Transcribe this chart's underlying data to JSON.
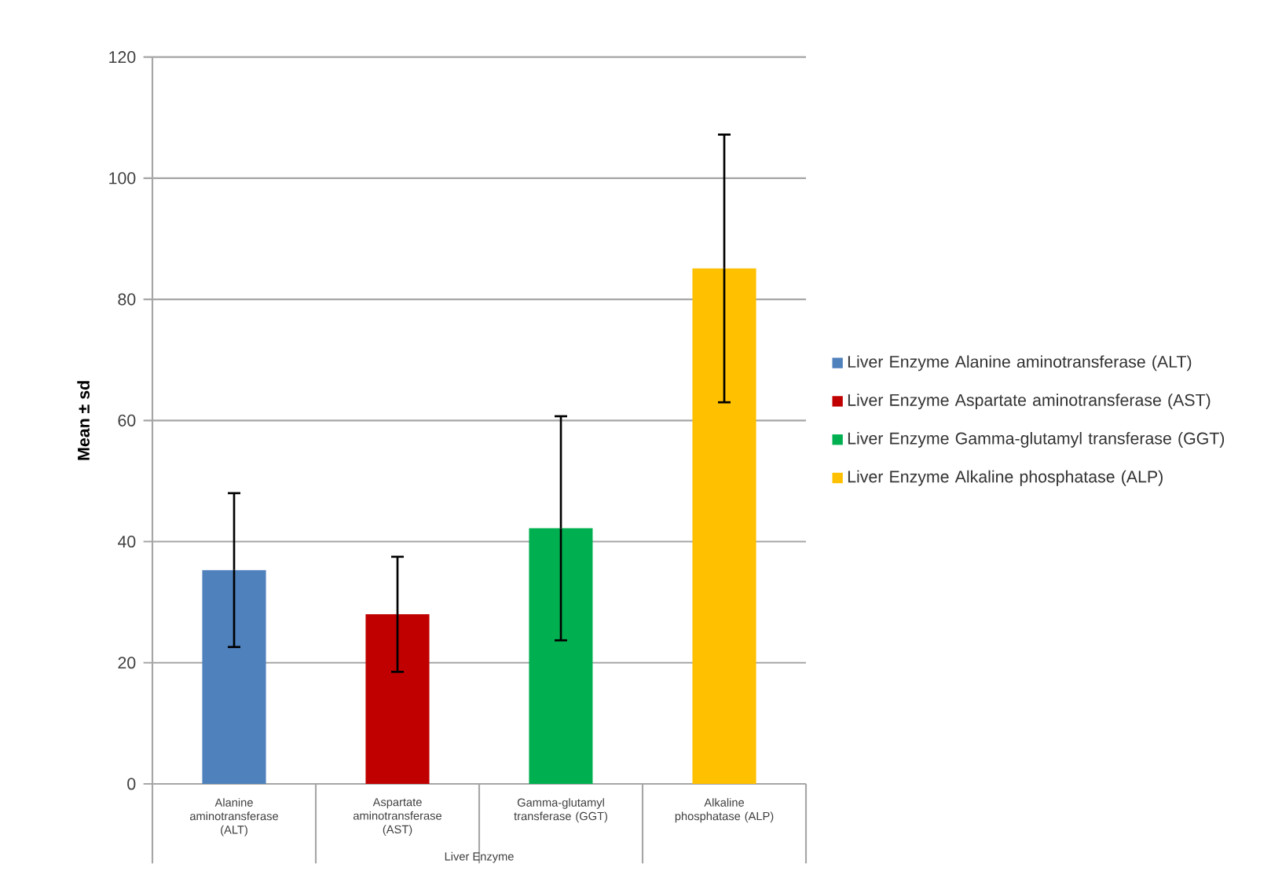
{
  "chart_data": {
    "type": "bar",
    "xlabel": "Liver Enzyme",
    "ylabel": "Mean ± sd",
    "categories": [
      "Alanine aminotransferase (ALT)",
      "Aspartate aminotransferase (AST)",
      "Gamma-glutamyl transferase (GGT)",
      "Alkaline phosphatase (ALP)"
    ],
    "series": [
      {
        "name": "Liver Enzyme Alanine aminotransferase (ALT)",
        "color": "#4f81bd",
        "values": [
          35.3,
          null,
          null,
          null
        ],
        "errors": [
          12.7,
          null,
          null,
          null
        ]
      },
      {
        "name": "Liver Enzyme Aspartate aminotransferase (AST)",
        "color": "#c00000",
        "values": [
          null,
          28.0,
          null,
          null
        ],
        "errors": [
          null,
          9.5,
          null,
          null
        ]
      },
      {
        "name": "Liver Enzyme Gamma-glutamyl transferase (GGT)",
        "color": "#00b050",
        "values": [
          null,
          null,
          42.2,
          null
        ],
        "errors": [
          null,
          null,
          18.5,
          null
        ]
      },
      {
        "name": "Liver Enzyme Alkaline phosphatase (ALP)",
        "color": "#ffc000",
        "values": [
          null,
          null,
          null,
          85.1
        ],
        "errors": [
          null,
          null,
          null,
          22.1
        ]
      }
    ],
    "ylim": [
      0,
      120
    ],
    "yticks": [
      0,
      20,
      40,
      60,
      80,
      100,
      120
    ],
    "grid": "y",
    "legend": "right"
  }
}
